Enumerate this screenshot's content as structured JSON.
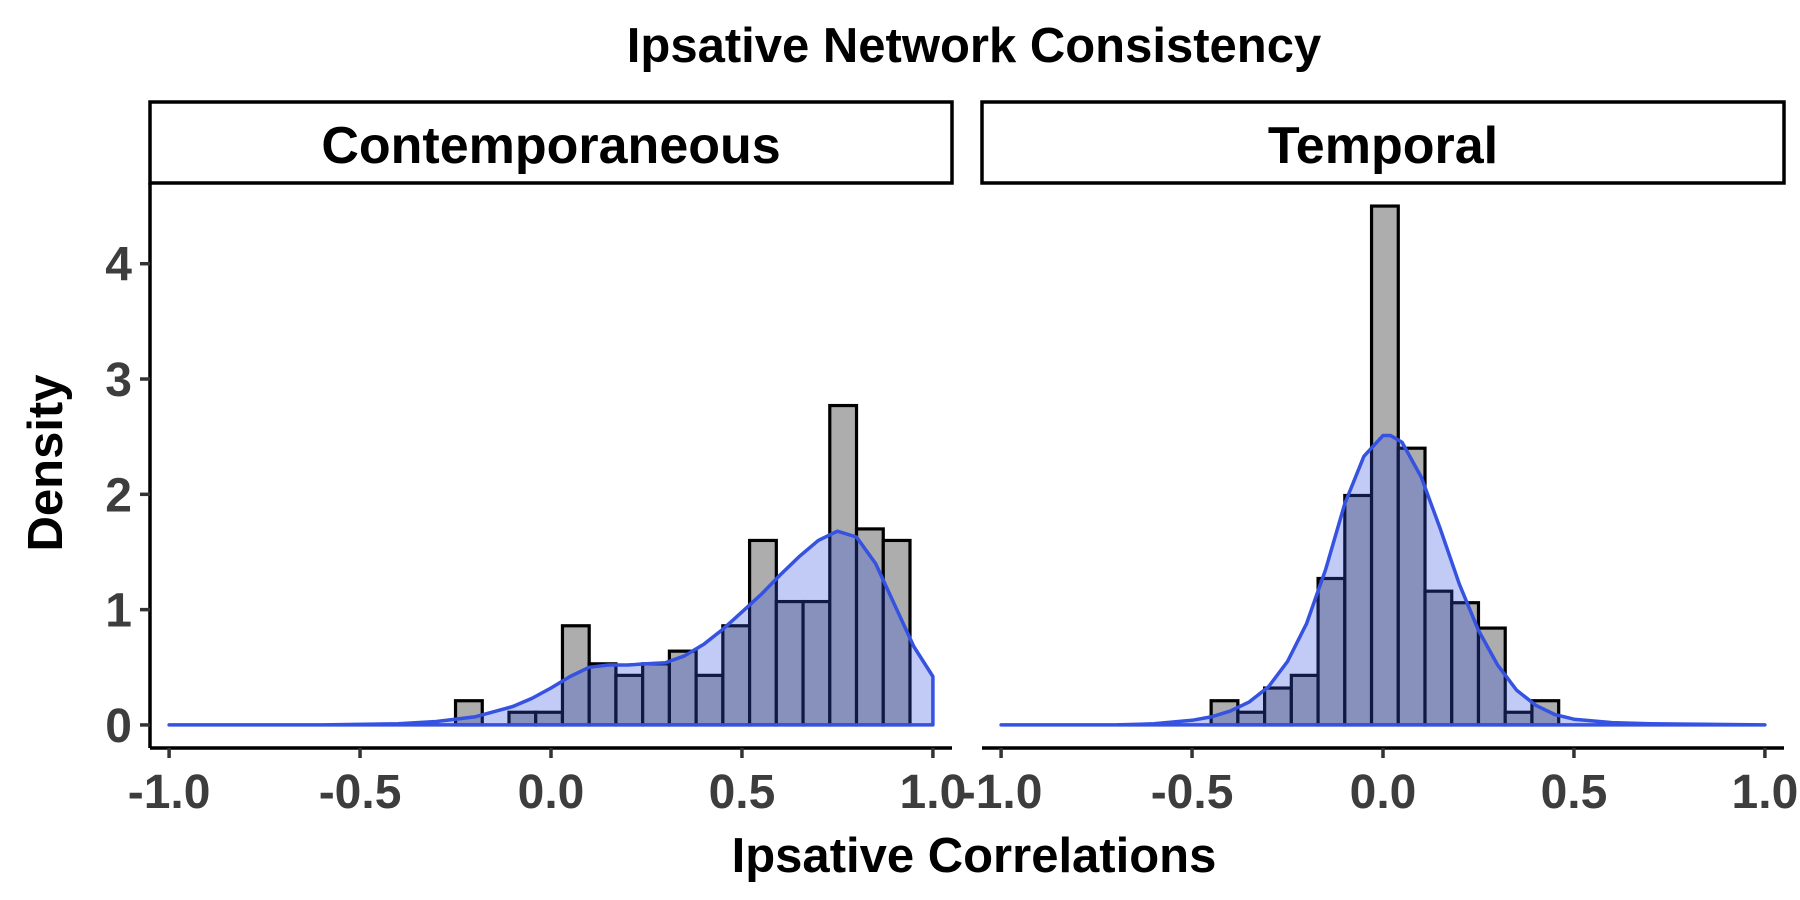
{
  "chart_data": {
    "type": "histogram",
    "title": "Ipsative Network Consistency",
    "xlabel": "Ipsative Correlations",
    "ylabel": "Density",
    "xlim": [
      -1.05,
      1.05
    ],
    "ylim": [
      -0.2,
      4.7
    ],
    "x_ticks": [
      "-1.0",
      "-0.5",
      "0.0",
      "0.5",
      "1.0"
    ],
    "y_ticks": [
      "0",
      "1",
      "2",
      "3",
      "4"
    ],
    "colors": {
      "histogram_fill": "#adadad",
      "histogram_outline": "#000000",
      "density_line": "#3552e0",
      "density_fill": "#3552e0"
    },
    "panels": [
      {
        "label": "Contemporaneous",
        "bins": [
          {
            "x0": -0.25,
            "x1": -0.18,
            "density": 0.21
          },
          {
            "x0": -0.11,
            "x1": -0.04,
            "density": 0.11
          },
          {
            "x0": -0.04,
            "x1": 0.03,
            "density": 0.11
          },
          {
            "x0": 0.03,
            "x1": 0.1,
            "density": 0.86
          },
          {
            "x0": 0.1,
            "x1": 0.17,
            "density": 0.53
          },
          {
            "x0": 0.17,
            "x1": 0.24,
            "density": 0.43
          },
          {
            "x0": 0.24,
            "x1": 0.31,
            "density": 0.53
          },
          {
            "x0": 0.31,
            "x1": 0.38,
            "density": 0.64
          },
          {
            "x0": 0.38,
            "x1": 0.45,
            "density": 0.43
          },
          {
            "x0": 0.45,
            "x1": 0.52,
            "density": 0.86
          },
          {
            "x0": 0.52,
            "x1": 0.59,
            "density": 1.6
          },
          {
            "x0": 0.59,
            "x1": 0.66,
            "density": 1.07
          },
          {
            "x0": 0.66,
            "x1": 0.73,
            "density": 1.07
          },
          {
            "x0": 0.73,
            "x1": 0.8,
            "density": 2.77
          },
          {
            "x0": 0.8,
            "x1": 0.87,
            "density": 1.7
          },
          {
            "x0": 0.87,
            "x1": 0.94,
            "density": 1.6
          }
        ],
        "density": {
          "x": [
            -1.0,
            -0.6,
            -0.4,
            -0.3,
            -0.2,
            -0.1,
            -0.05,
            0.0,
            0.05,
            0.1,
            0.15,
            0.2,
            0.25,
            0.3,
            0.35,
            0.4,
            0.45,
            0.5,
            0.55,
            0.6,
            0.65,
            0.7,
            0.75,
            0.8,
            0.85,
            0.9,
            0.95,
            1.0
          ],
          "y": [
            0.0,
            0.0,
            0.01,
            0.03,
            0.07,
            0.16,
            0.23,
            0.32,
            0.42,
            0.5,
            0.52,
            0.52,
            0.53,
            0.54,
            0.6,
            0.7,
            0.83,
            0.98,
            1.13,
            1.3,
            1.46,
            1.6,
            1.68,
            1.63,
            1.4,
            1.04,
            0.68,
            0.42
          ]
        }
      },
      {
        "label": "Temporal",
        "bins": [
          {
            "x0": -0.45,
            "x1": -0.38,
            "density": 0.21
          },
          {
            "x0": -0.38,
            "x1": -0.31,
            "density": 0.11
          },
          {
            "x0": -0.31,
            "x1": -0.24,
            "density": 0.32
          },
          {
            "x0": -0.24,
            "x1": -0.17,
            "density": 0.43
          },
          {
            "x0": -0.17,
            "x1": -0.1,
            "density": 1.27
          },
          {
            "x0": -0.1,
            "x1": -0.03,
            "density": 1.99
          },
          {
            "x0": -0.03,
            "x1": 0.04,
            "density": 4.5
          },
          {
            "x0": 0.04,
            "x1": 0.11,
            "density": 2.4
          },
          {
            "x0": 0.11,
            "x1": 0.18,
            "density": 1.16
          },
          {
            "x0": 0.18,
            "x1": 0.25,
            "density": 1.06
          },
          {
            "x0": 0.25,
            "x1": 0.32,
            "density": 0.84
          },
          {
            "x0": 0.32,
            "x1": 0.39,
            "density": 0.11
          },
          {
            "x0": 0.39,
            "x1": 0.46,
            "density": 0.21
          }
        ],
        "density": {
          "x": [
            -1.0,
            -0.7,
            -0.6,
            -0.5,
            -0.45,
            -0.4,
            -0.35,
            -0.3,
            -0.25,
            -0.2,
            -0.15,
            -0.1,
            -0.05,
            0.0,
            0.02,
            0.05,
            0.1,
            0.15,
            0.2,
            0.25,
            0.3,
            0.35,
            0.4,
            0.45,
            0.5,
            0.6,
            0.7,
            1.0
          ],
          "y": [
            0.0,
            0.0,
            0.01,
            0.04,
            0.07,
            0.12,
            0.2,
            0.33,
            0.55,
            0.88,
            1.35,
            1.92,
            2.33,
            2.51,
            2.51,
            2.45,
            2.15,
            1.7,
            1.22,
            0.82,
            0.52,
            0.3,
            0.17,
            0.09,
            0.05,
            0.02,
            0.01,
            0.0
          ]
        }
      }
    ]
  }
}
